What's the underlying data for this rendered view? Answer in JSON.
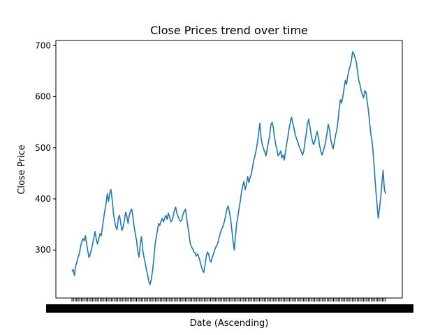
{
  "chart_data": {
    "type": "line",
    "title": "Close Prices trend over time",
    "xlabel": "Date (Ascending)",
    "ylabel": "Close Price",
    "ylim": [
      206,
      710
    ],
    "yticks": [
      300,
      400,
      500,
      600,
      700
    ],
    "grid": false,
    "legend": "none",
    "x_tick_labels_note": "x tick labels are overlapping and illegible",
    "series": [
      {
        "color": "#1f77b4",
        "values": [
          258,
          262,
          250,
          268,
          276,
          286,
          292,
          305,
          316,
          322,
          318,
          328,
          312,
          298,
          285,
          292,
          302,
          312,
          325,
          336,
          320,
          312,
          322,
          332,
          328,
          345,
          362,
          378,
          392,
          410,
          395,
          412,
          418,
          398,
          372,
          356,
          345,
          340,
          362,
          368,
          352,
          338,
          346,
          358,
          374,
          366,
          352,
          368,
          376,
          380,
          364,
          345,
          330,
          318,
          296,
          286,
          312,
          326,
          300,
          286,
          275,
          262,
          252,
          238,
          232,
          242,
          258,
          280,
          308,
          324,
          338,
          352,
          348,
          356,
          362,
          355,
          362,
          368,
          360,
          372,
          365,
          355,
          358,
          366,
          378,
          384,
          372,
          365,
          360,
          356,
          358,
          370,
          376,
          380,
          362,
          346,
          330,
          312,
          306,
          302,
          296,
          294,
          288,
          292,
          286,
          278,
          268,
          260,
          256,
          270,
          286,
          296,
          292,
          280,
          276,
          286,
          292,
          300,
          306,
          310,
          318,
          328,
          336,
          342,
          348,
          356,
          368,
          380,
          386,
          374,
          362,
          340,
          318,
          300,
          326,
          352,
          366,
          382,
          396,
          414,
          426,
          434,
          418,
          428,
          444,
          432,
          442,
          448,
          462,
          476,
          484,
          496,
          510,
          528,
          548,
          520,
          506,
          498,
          492,
          484,
          498,
          510,
          524,
          544,
          550,
          540,
          520,
          506,
          498,
          484,
          488,
          494,
          480,
          486,
          476,
          492,
          508,
          522,
          538,
          550,
          560,
          548,
          538,
          526,
          518,
          512,
          504,
          498,
          492,
          486,
          494,
          512,
          528,
          546,
          556,
          542,
          526,
          514,
          506,
          512,
          524,
          532,
          520,
          504,
          492,
          486,
          494,
          502,
          514,
          528,
          546,
          536,
          518,
          506,
          498,
          510,
          524,
          534,
          552,
          576,
          594,
          588,
          600,
          616,
          632,
          624,
          640,
          652,
          660,
          670,
          688,
          684,
          676,
          668,
          650,
          632,
          624,
          612,
          604,
          598,
          612,
          608,
          590,
          572,
          548,
          526,
          512,
          486,
          452,
          418,
          390,
          362,
          380,
          402,
          430,
          456,
          420,
          410
        ]
      }
    ]
  }
}
